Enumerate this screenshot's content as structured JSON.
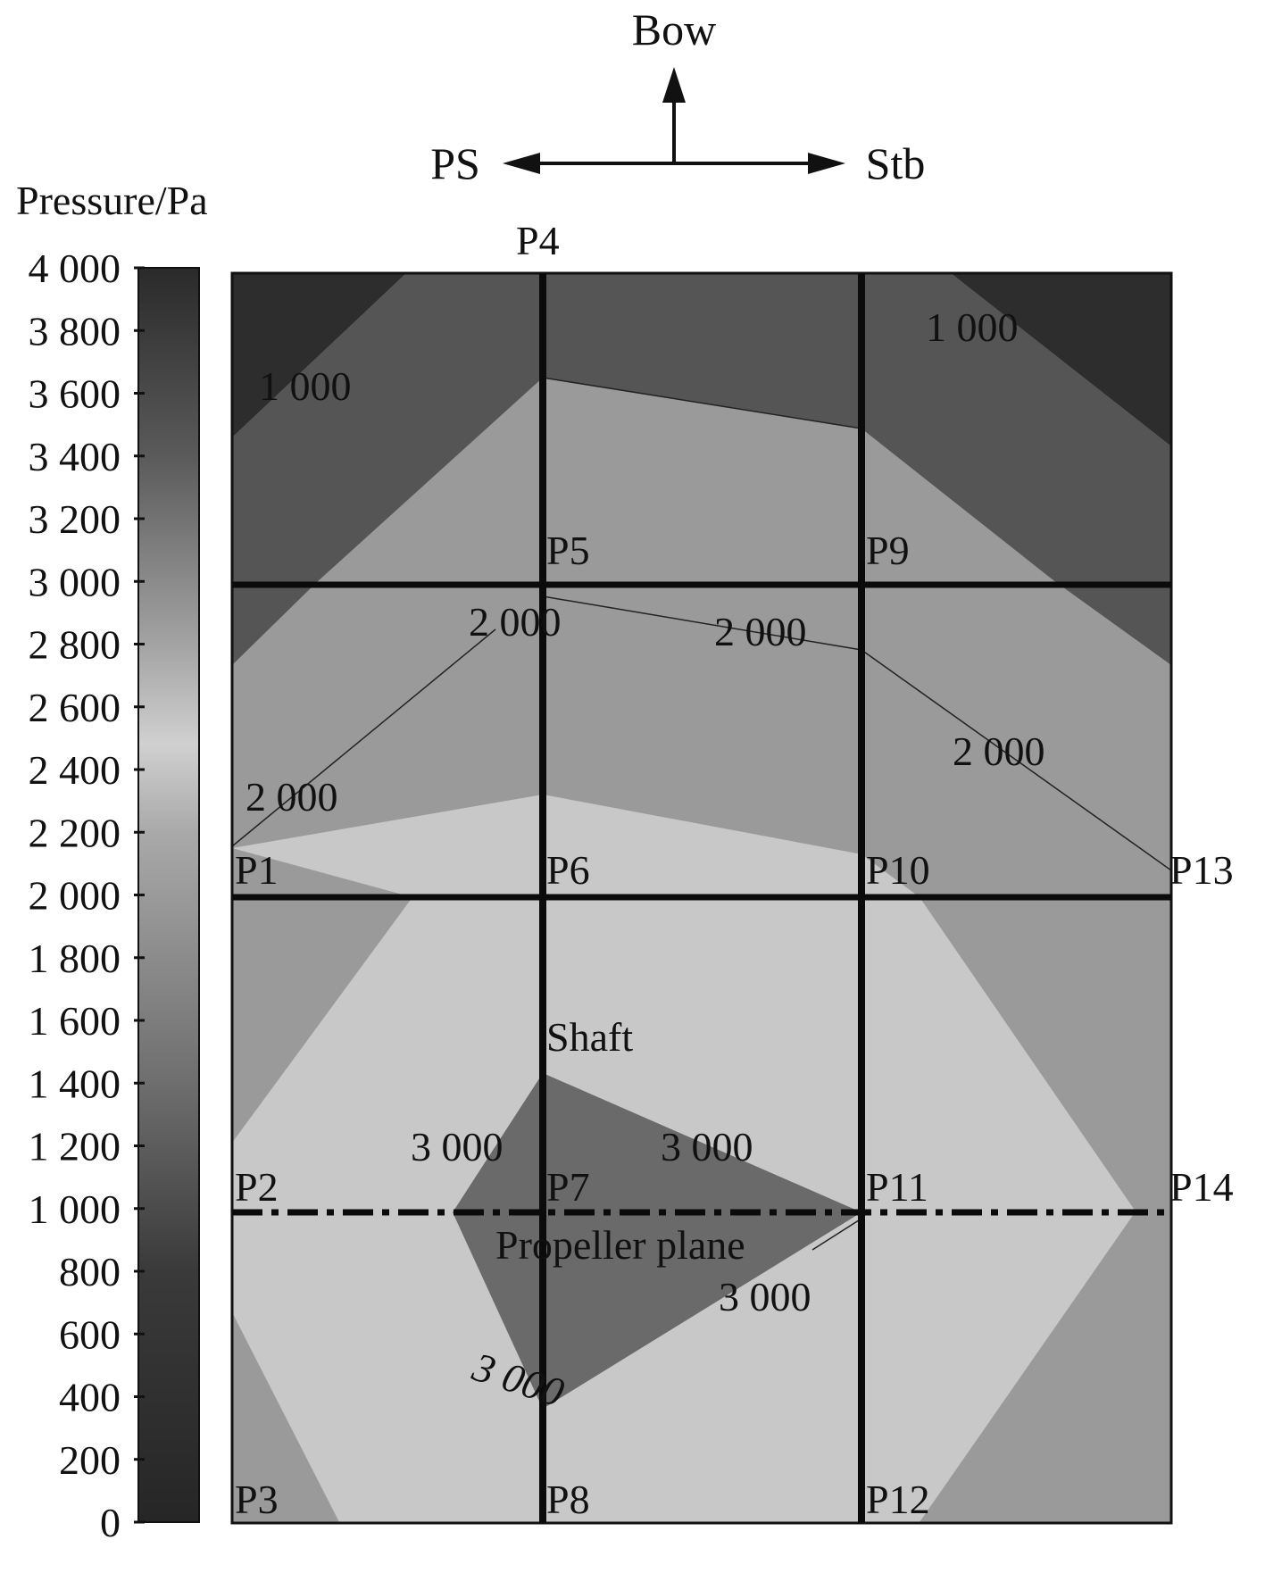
{
  "compass": {
    "bow": "Bow",
    "port": "PS",
    "starboard": "Stb"
  },
  "legend": {
    "title": "Pressure/Pa",
    "ticks": [
      "4 000",
      "3 800",
      "3 600",
      "3 400",
      "3 200",
      "3 000",
      "2 800",
      "2 600",
      "2 400",
      "2 200",
      "2 000",
      "1 800",
      "1 600",
      "1 400",
      "1 200",
      "1 000",
      "800",
      "600",
      "400",
      "200",
      "0"
    ],
    "range": [
      0,
      4000
    ]
  },
  "points": {
    "p1": "P1",
    "p2": "P2",
    "p3": "P3",
    "p4": "P4",
    "p5": "P5",
    "p6": "P6",
    "p7": "P7",
    "p8": "P8",
    "p9": "P9",
    "p10": "P10",
    "p11": "P11",
    "p12": "P12",
    "p13": "P13",
    "p14": "P14"
  },
  "annotations": {
    "shaft": "Shaft",
    "propeller_plane": "Propeller plane"
  },
  "contour_labels": {
    "c1000_left": "1 000",
    "c1000_right": "1 000",
    "c2000_a": "2 000",
    "c2000_b": "2 000",
    "c2000_c": "2 000",
    "c2000_d": "2 000",
    "c3000_a": "3 000",
    "c3000_b": "3 000",
    "c3000_c": "3 000",
    "c3000_d": "3 000"
  },
  "colors": {
    "band_darkest": "#2d2d2d",
    "band_dark": "#555555",
    "band_mid": "#9a9a9a",
    "band_light": "#c8c8c8",
    "core": "#6a6a6a"
  }
}
